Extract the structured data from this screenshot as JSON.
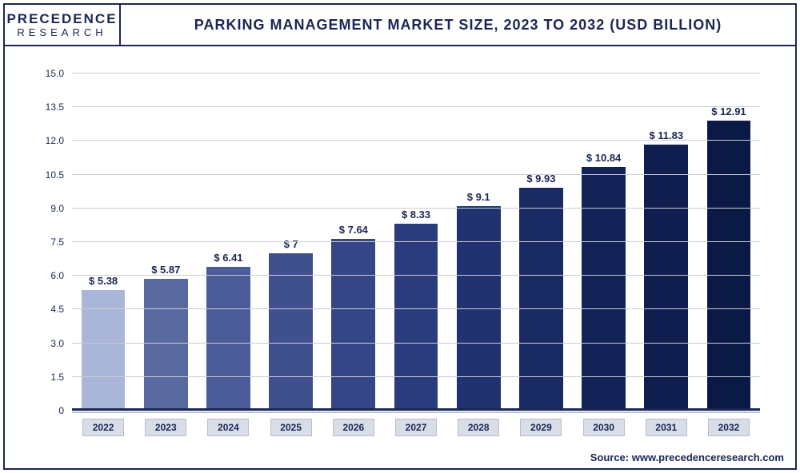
{
  "branding": {
    "logo_main": "PRECEDENCE",
    "logo_sub": "RESEARCH"
  },
  "chart": {
    "type": "bar",
    "title": "PARKING MANAGEMENT MARKET SIZE, 2023 TO 2032 (USD BILLION)",
    "title_fontsize": 18,
    "title_color": "#1a2654",
    "background_color": "#ffffff",
    "border_color": "#1a2654",
    "grid_color": "#c9ccd6",
    "categories": [
      "2022",
      "2023",
      "2024",
      "2025",
      "2026",
      "2027",
      "2028",
      "2029",
      "2030",
      "2031",
      "2032"
    ],
    "values": [
      5.38,
      5.87,
      6.41,
      7,
      7.64,
      8.33,
      9.1,
      9.93,
      10.84,
      11.83,
      12.91
    ],
    "value_labels": [
      "$ 5.38",
      "$ 5.87",
      "$ 6.41",
      "$ 7",
      "$ 7.64",
      "$ 8.33",
      "$ 9.1",
      "$ 9.93",
      "$ 10.84",
      "$ 11.83",
      "$ 12.91"
    ],
    "bar_colors": [
      "#aab6d9",
      "#5a6aa1",
      "#4c5c98",
      "#40508f",
      "#344685",
      "#2a3c7b",
      "#203270",
      "#192a63",
      "#132358",
      "#0f1e4e",
      "#0b1945"
    ],
    "ylim": [
      0,
      15
    ],
    "yticks": [
      0,
      1.5,
      3.0,
      4.5,
      6.0,
      7.5,
      9.0,
      10.5,
      12.0,
      13.5,
      15.0
    ],
    "ytick_labels": [
      "0",
      "1.5",
      "3.0",
      "4.5",
      "6.0",
      "7.5",
      "9.0",
      "10.5",
      "12.0",
      "13.5",
      "15.0"
    ],
    "ytick_fontsize": 12,
    "value_label_fontsize": 13,
    "value_label_color": "#1a2654",
    "x_label_bg": "#d9dde8",
    "x_label_border": "#b9bdcb",
    "x_label_fontsize": 12,
    "bar_width": 0.7
  },
  "source": "Source: www.precedenceresearch.com"
}
